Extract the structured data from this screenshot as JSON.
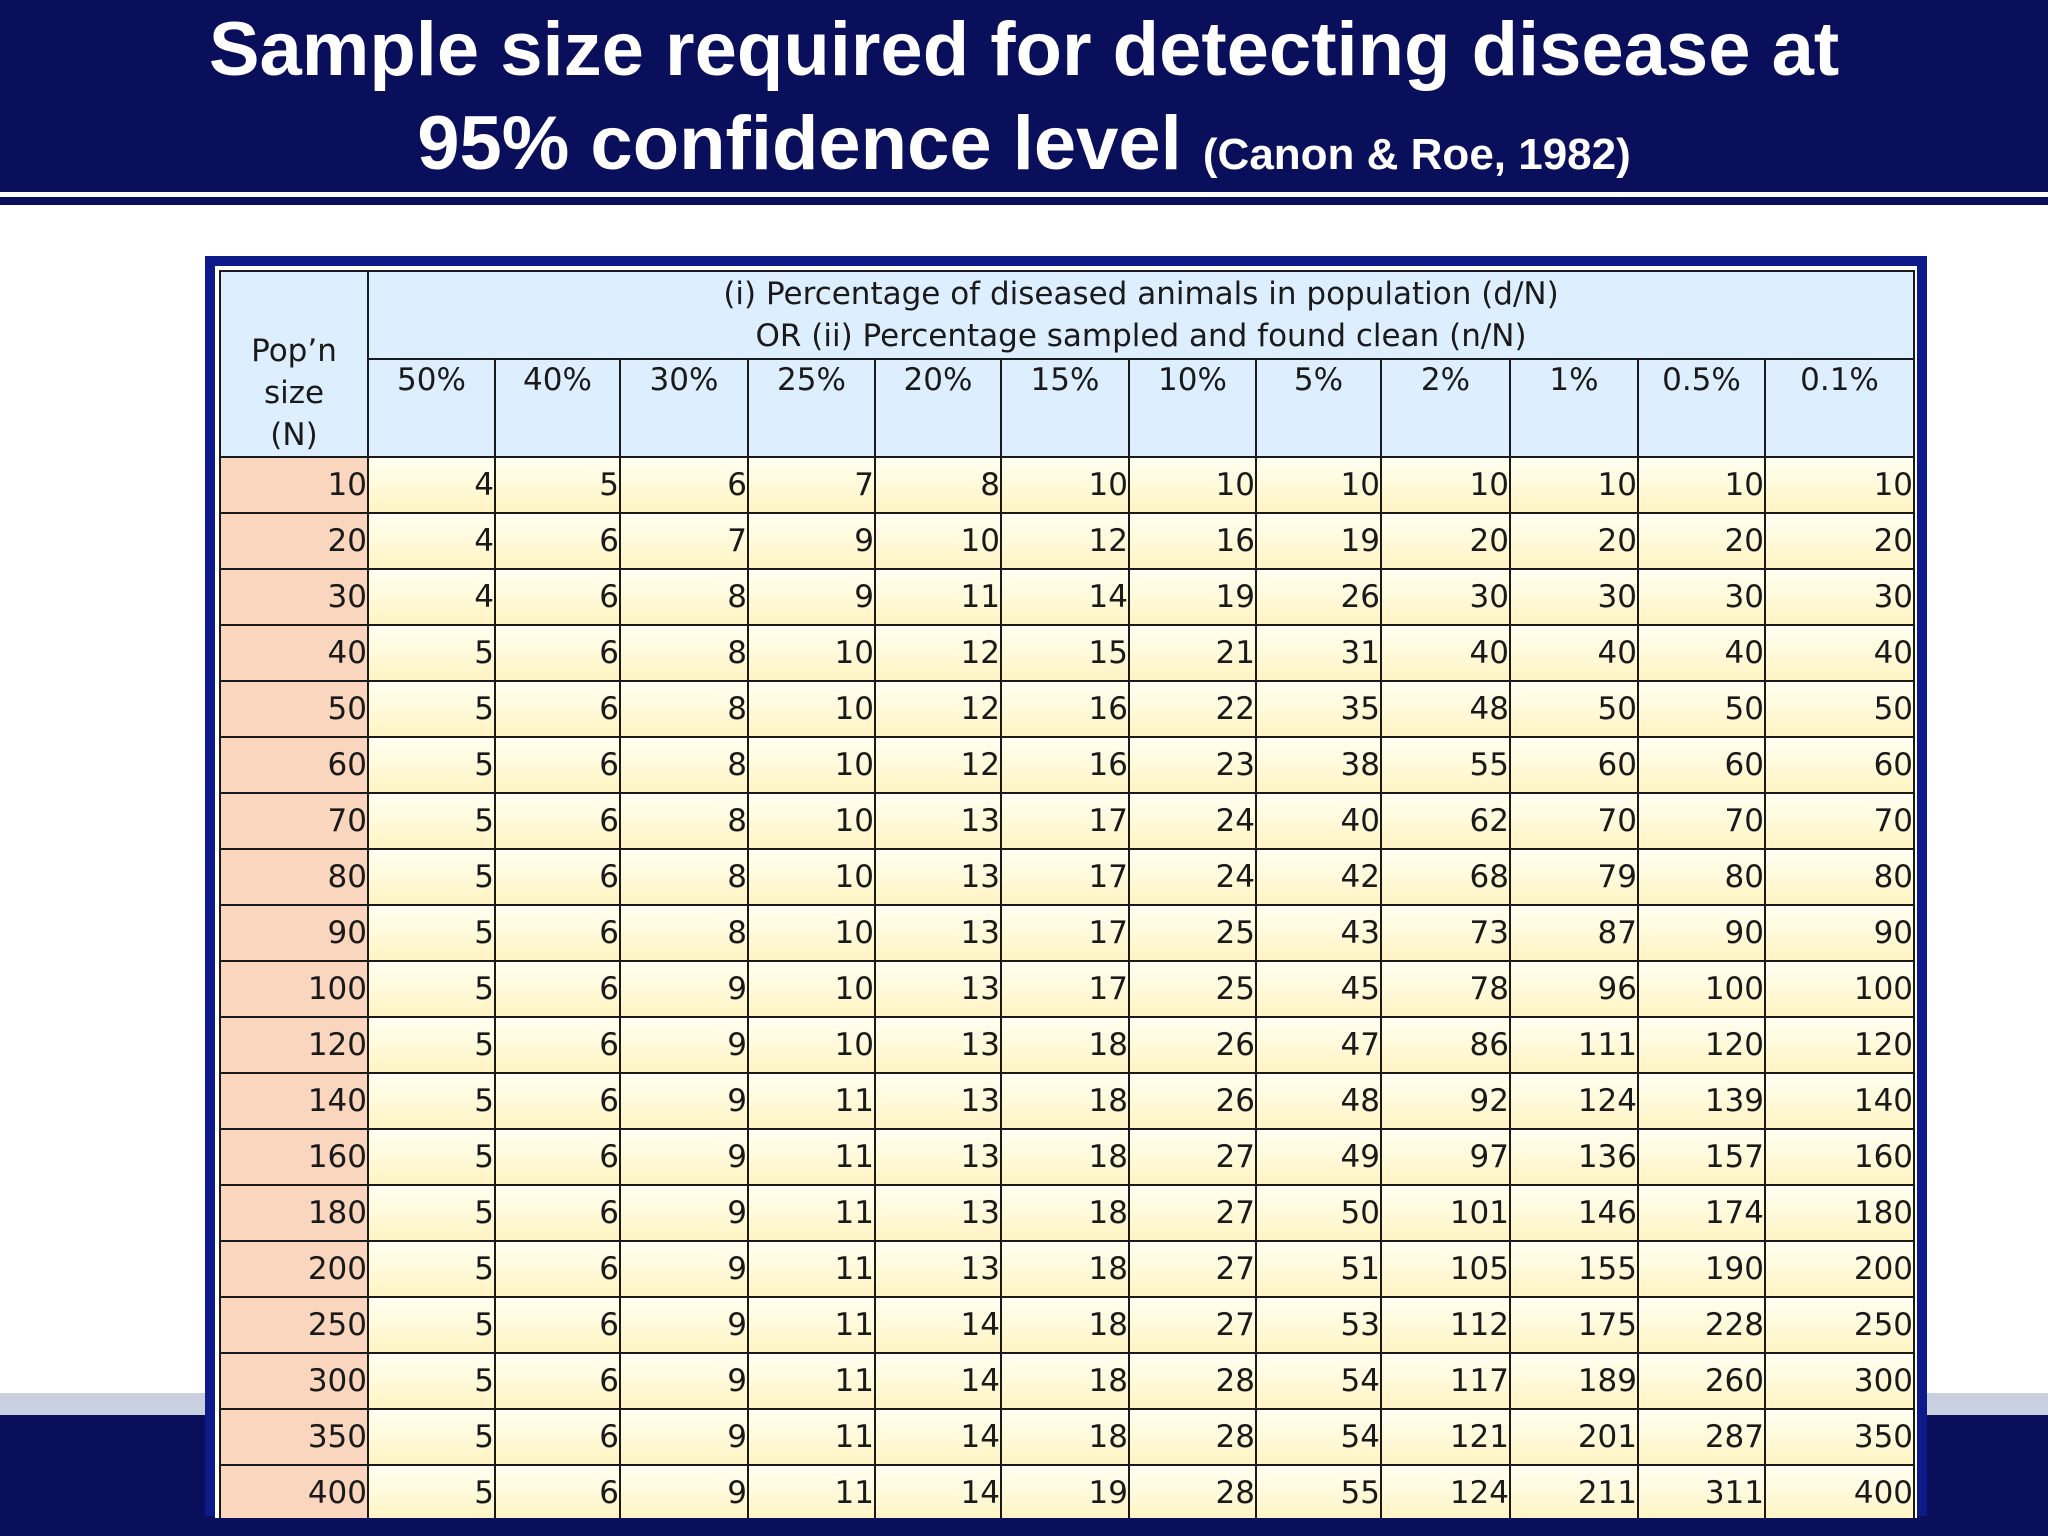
{
  "title": {
    "line1": "Sample size required for detecting disease at",
    "line2": "95% confidence level",
    "citation": "(Canon & Roe, 1982)"
  },
  "table": {
    "row_header": [
      "Pop’n",
      "size",
      "(N)"
    ],
    "column_group_header": [
      "(i) Percentage of diseased animals in population (d/N)",
      "OR  (ii) Percentage sampled and found clean (n/N)"
    ],
    "columns": [
      "50%",
      "40%",
      "30%",
      "25%",
      "20%",
      "15%",
      "10%",
      "5%",
      "2%",
      "1%",
      "0.5%",
      "0.1%"
    ],
    "rows": [
      {
        "n": "10",
        "values": [
          "4",
          "5",
          "6",
          "7",
          "8",
          "10",
          "10",
          "10",
          "10",
          "10",
          "10",
          "10"
        ]
      },
      {
        "n": "20",
        "values": [
          "4",
          "6",
          "7",
          "9",
          "10",
          "12",
          "16",
          "19",
          "20",
          "20",
          "20",
          "20"
        ]
      },
      {
        "n": "30",
        "values": [
          "4",
          "6",
          "8",
          "9",
          "11",
          "14",
          "19",
          "26",
          "30",
          "30",
          "30",
          "30"
        ]
      },
      {
        "n": "40",
        "values": [
          "5",
          "6",
          "8",
          "10",
          "12",
          "15",
          "21",
          "31",
          "40",
          "40",
          "40",
          "40"
        ]
      },
      {
        "n": "50",
        "values": [
          "5",
          "6",
          "8",
          "10",
          "12",
          "16",
          "22",
          "35",
          "48",
          "50",
          "50",
          "50"
        ]
      },
      {
        "n": "60",
        "values": [
          "5",
          "6",
          "8",
          "10",
          "12",
          "16",
          "23",
          "38",
          "55",
          "60",
          "60",
          "60"
        ]
      },
      {
        "n": "70",
        "values": [
          "5",
          "6",
          "8",
          "10",
          "13",
          "17",
          "24",
          "40",
          "62",
          "70",
          "70",
          "70"
        ]
      },
      {
        "n": "80",
        "values": [
          "5",
          "6",
          "8",
          "10",
          "13",
          "17",
          "24",
          "42",
          "68",
          "79",
          "80",
          "80"
        ]
      },
      {
        "n": "90",
        "values": [
          "5",
          "6",
          "8",
          "10",
          "13",
          "17",
          "25",
          "43",
          "73",
          "87",
          "90",
          "90"
        ]
      },
      {
        "n": "100",
        "values": [
          "5",
          "6",
          "9",
          "10",
          "13",
          "17",
          "25",
          "45",
          "78",
          "96",
          "100",
          "100"
        ]
      },
      {
        "n": "120",
        "values": [
          "5",
          "6",
          "9",
          "10",
          "13",
          "18",
          "26",
          "47",
          "86",
          "111",
          "120",
          "120"
        ]
      },
      {
        "n": "140",
        "values": [
          "5",
          "6",
          "9",
          "11",
          "13",
          "18",
          "26",
          "48",
          "92",
          "124",
          "139",
          "140"
        ]
      },
      {
        "n": "160",
        "values": [
          "5",
          "6",
          "9",
          "11",
          "13",
          "18",
          "27",
          "49",
          "97",
          "136",
          "157",
          "160"
        ]
      },
      {
        "n": "180",
        "values": [
          "5",
          "6",
          "9",
          "11",
          "13",
          "18",
          "27",
          "50",
          "101",
          "146",
          "174",
          "180"
        ]
      },
      {
        "n": "200",
        "values": [
          "5",
          "6",
          "9",
          "11",
          "13",
          "18",
          "27",
          "51",
          "105",
          "155",
          "190",
          "200"
        ]
      },
      {
        "n": "250",
        "values": [
          "5",
          "6",
          "9",
          "11",
          "14",
          "18",
          "27",
          "53",
          "112",
          "175",
          "228",
          "250"
        ]
      },
      {
        "n": "300",
        "values": [
          "5",
          "6",
          "9",
          "11",
          "14",
          "18",
          "28",
          "54",
          "117",
          "189",
          "260",
          "300"
        ]
      },
      {
        "n": "350",
        "values": [
          "5",
          "6",
          "9",
          "11",
          "14",
          "18",
          "28",
          "54",
          "121",
          "201",
          "287",
          "350"
        ]
      },
      {
        "n": "400",
        "values": [
          "5",
          "6",
          "9",
          "11",
          "14",
          "19",
          "28",
          "55",
          "124",
          "211",
          "311",
          "400"
        ]
      }
    ]
  },
  "colors": {
    "navy": "#0a0f5c",
    "table_border": "#0d1a8a",
    "header_fill": "#ddeeff",
    "pop_fill": "#fbd6bf",
    "value_fill": "#fff6c8"
  }
}
